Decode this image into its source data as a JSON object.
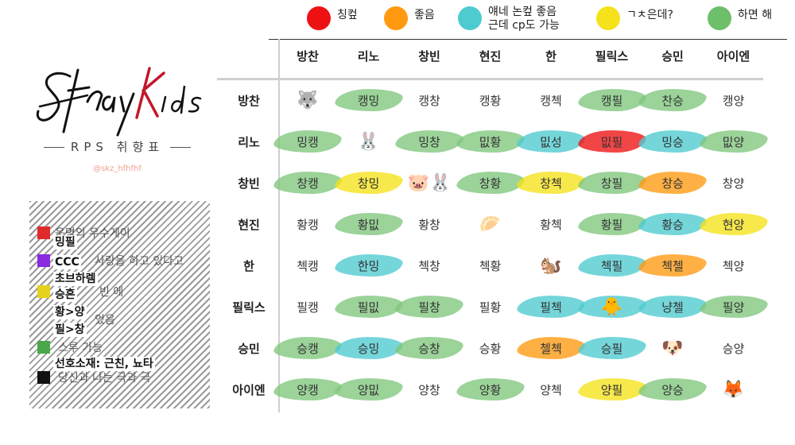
{
  "legend": [
    {
      "color": "#ee1111",
      "label": "칭컾"
    },
    {
      "color": "#ff9a10",
      "label": "좋음"
    },
    {
      "color": "#4ecbd0",
      "label": "얘네 논컾 좋음\n근데 cp도 가능"
    },
    {
      "color": "#f5e21a",
      "label": "ㄱㅊ은데?"
    },
    {
      "color": "#6dbf6a",
      "label": "하면 해"
    }
  ],
  "subtitle": "RPS 취향표",
  "handle": "@skz_hfhfhf",
  "notes": {
    "faded": [
      "운명의 우수게이",
      "사랑을 하고 있다고",
      "빈 에",
      "었음",
      "스루 가능",
      "당신과 나는 극과 극"
    ],
    "swatch_colors": [
      "#e12a2a",
      "#8a2be2",
      "#e4d21e",
      "#4aa84a",
      "#111111"
    ],
    "overlays": [
      "밍필",
      "CCC",
      "초브하렘",
      "승흔",
      "황>양",
      "필>창",
      "선호소재: 근친, 뇨타"
    ]
  },
  "columns": [
    "방찬",
    "리노",
    "창빈",
    "현진",
    "한",
    "필릭스",
    "승민",
    "아이엔"
  ],
  "rows": [
    {
      "label": "방찬",
      "cells": [
        {
          "emoji": "🐺"
        },
        {
          "text": "캥밍",
          "color": "green"
        },
        {
          "text": "캥창"
        },
        {
          "text": "캥황"
        },
        {
          "text": "캥첵"
        },
        {
          "text": "캥필",
          "color": "green"
        },
        {
          "text": "찬승",
          "color": "green"
        },
        {
          "text": "캥양"
        }
      ]
    },
    {
      "label": "리노",
      "cells": [
        {
          "text": "밍캥",
          "color": "green"
        },
        {
          "emoji": "🐰"
        },
        {
          "text": "밍창",
          "color": "green"
        },
        {
          "text": "밊황",
          "color": "green"
        },
        {
          "text": "밊성",
          "color": "teal"
        },
        {
          "text": "밊필",
          "color": "red"
        },
        {
          "text": "밍승",
          "color": "teal"
        },
        {
          "text": "밊양",
          "color": "green"
        }
      ]
    },
    {
      "label": "창빈",
      "cells": [
        {
          "text": "창캥",
          "color": "green"
        },
        {
          "text": "창밍",
          "color": "yellow"
        },
        {
          "emoji": "🐷🐰"
        },
        {
          "text": "창황",
          "color": "green"
        },
        {
          "text": "창첵",
          "color": "yellow"
        },
        {
          "text": "창필",
          "color": "green"
        },
        {
          "text": "창승",
          "color": "orange"
        },
        {
          "text": "창양"
        }
      ]
    },
    {
      "label": "현진",
      "cells": [
        {
          "text": "황캥"
        },
        {
          "text": "황밊",
          "color": "green"
        },
        {
          "text": "황창"
        },
        {
          "emoji": "🥟"
        },
        {
          "text": "황첵"
        },
        {
          "text": "황필",
          "color": "green"
        },
        {
          "text": "황승",
          "color": "teal"
        },
        {
          "text": "현양",
          "color": "yellow"
        }
      ]
    },
    {
      "label": "한",
      "cells": [
        {
          "text": "첵캥"
        },
        {
          "text": "한밍",
          "color": "teal"
        },
        {
          "text": "첵창"
        },
        {
          "text": "첵황"
        },
        {
          "emoji": "🐿️"
        },
        {
          "text": "첵필",
          "color": "teal"
        },
        {
          "text": "첵첼",
          "color": "orange"
        },
        {
          "text": "첵양"
        }
      ]
    },
    {
      "label": "필릭스",
      "cells": [
        {
          "text": "필캥"
        },
        {
          "text": "필밊",
          "color": "green"
        },
        {
          "text": "필창",
          "color": "green"
        },
        {
          "text": "필황"
        },
        {
          "text": "필첵",
          "color": "teal"
        },
        {
          "emoji": "🐥",
          "color": "teal"
        },
        {
          "text": "냥첼",
          "color": "teal"
        },
        {
          "text": "필양",
          "color": "green"
        }
      ]
    },
    {
      "label": "승민",
      "cells": [
        {
          "text": "승캥",
          "color": "green"
        },
        {
          "text": "승밍",
          "color": "teal"
        },
        {
          "text": "승창",
          "color": "green"
        },
        {
          "text": "승황"
        },
        {
          "text": "첼첵",
          "color": "orange"
        },
        {
          "text": "승필",
          "color": "teal"
        },
        {
          "emoji": "🐶"
        },
        {
          "text": "승양"
        }
      ]
    },
    {
      "label": "아이엔",
      "cells": [
        {
          "text": "양캥",
          "color": "green"
        },
        {
          "text": "양밊",
          "color": "green"
        },
        {
          "text": "양창"
        },
        {
          "text": "양황",
          "color": "green"
        },
        {
          "text": "양첵"
        },
        {
          "text": "양필",
          "color": "yellow"
        },
        {
          "text": "양승",
          "color": "green"
        },
        {
          "emoji": "🦊"
        }
      ]
    }
  ],
  "palette": {
    "red": "#ee1111",
    "orange": "#ff9a10",
    "teal": "#4ecbd0",
    "yellow": "#f5e21a",
    "green": "#7fc77c"
  }
}
